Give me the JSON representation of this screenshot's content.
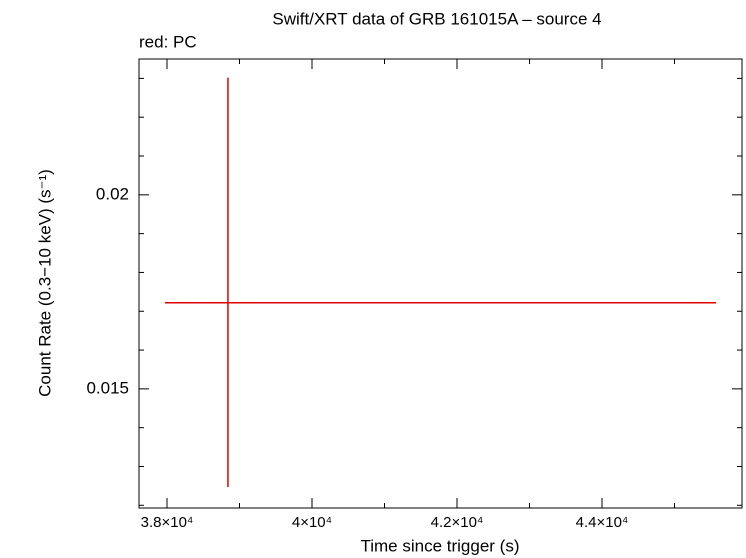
{
  "chart_data": {
    "type": "errorbar",
    "title": "Swift/XRT data of GRB 161015A – source 4",
    "subtitle": "red: PC",
    "x_label": "Time since trigger (s)",
    "y_label": "Count Rate (0.3−10 keV) (s⁻¹)",
    "series": [
      {
        "name": "PC",
        "color": "#e00000",
        "x": [
          38841
        ],
        "values": [
          0.01722
        ],
        "x_err_low": [
          869
        ],
        "x_err_high": [
          6731
        ],
        "y_err_low": [
          0.00475
        ],
        "y_err_high": [
          0.0058
        ]
      }
    ],
    "xlim": [
      37614,
      45931
    ],
    "ylim": [
      0.01193,
      0.0235
    ],
    "xticks": [
      {
        "value": 38000,
        "label": "3.8×10⁴"
      },
      {
        "value": 40000,
        "label": "4×10⁴"
      },
      {
        "value": 42000,
        "label": "4.2×10⁴"
      },
      {
        "value": 44000,
        "label": "4.4×10⁴"
      }
    ],
    "xminorticks": [
      39000,
      41000,
      43000,
      45000
    ],
    "yticks": [
      0.015,
      0.02
    ],
    "yminorticks": [
      0.012,
      0.013,
      0.014,
      0.016,
      0.017,
      0.018,
      0.019,
      0.021,
      0.022,
      0.023
    ]
  }
}
